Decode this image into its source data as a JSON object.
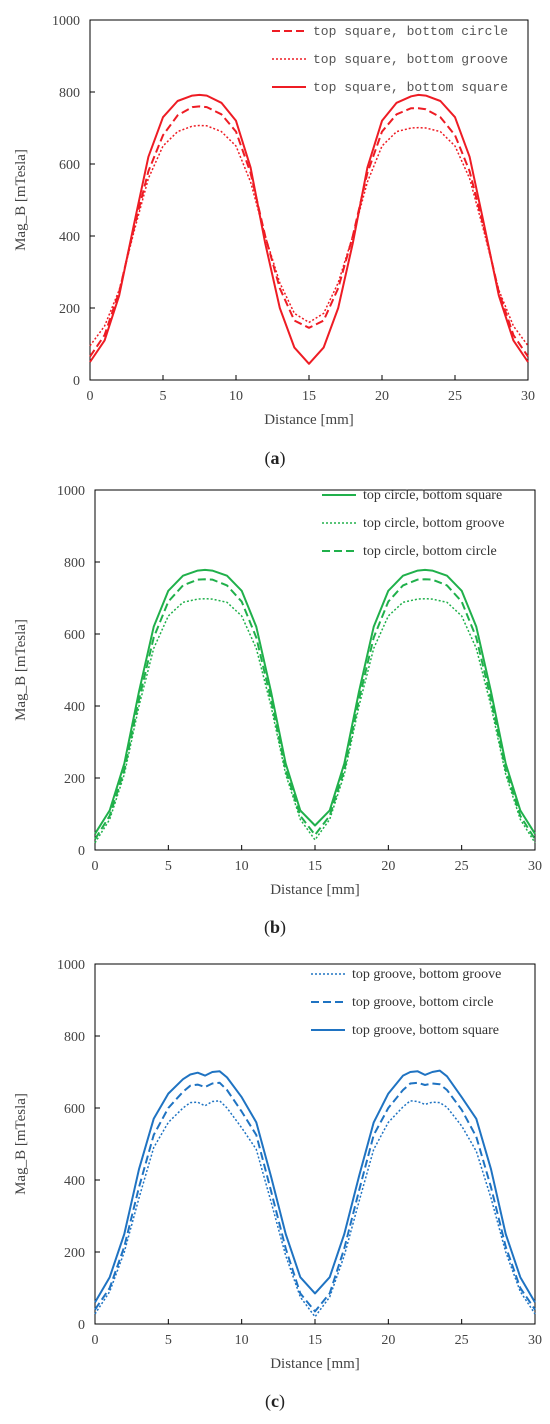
{
  "captions": [
    {
      "open": "(",
      "letter": "a",
      "close": ")"
    },
    {
      "open": "(",
      "letter": "b",
      "close": ")"
    },
    {
      "open": "(",
      "letter": "c",
      "close": ")"
    }
  ],
  "chart_data": [
    {
      "type": "line",
      "xlabel": "Distance [mm]",
      "ylabel": "Mag_B [mTesla]",
      "xlim": [
        0,
        30
      ],
      "ylim": [
        0,
        1000
      ],
      "xticks": [
        "0",
        "5",
        "10",
        "15",
        "20",
        "25",
        "30"
      ],
      "yticks": [
        "0",
        "200",
        "400",
        "600",
        "800",
        "1000"
      ],
      "grid": false,
      "legend_position": "top-right",
      "color": "#ee1c24",
      "x": [
        0,
        1,
        2,
        3,
        4,
        5,
        6,
        7,
        7.5,
        8,
        9,
        10,
        11,
        12,
        13,
        14,
        15,
        16,
        17,
        18,
        19,
        20,
        21,
        22,
        22.5,
        23,
        24,
        25,
        26,
        27,
        28,
        29,
        30
      ],
      "series": [
        {
          "name": "top square, bottom circle",
          "dash": "dashed",
          "values": [
            65,
            125,
            245,
            420,
            580,
            680,
            735,
            758,
            760,
            758,
            738,
            690,
            575,
            400,
            255,
            165,
            145,
            165,
            255,
            400,
            575,
            690,
            738,
            755,
            755,
            752,
            730,
            680,
            580,
            420,
            245,
            125,
            65
          ]
        },
        {
          "name": "top square, bottom groove",
          "dash": "dotted",
          "values": [
            95,
            150,
            250,
            410,
            560,
            650,
            690,
            705,
            707,
            706,
            690,
            650,
            550,
            400,
            270,
            185,
            160,
            185,
            270,
            400,
            550,
            650,
            690,
            700,
            701,
            700,
            690,
            650,
            560,
            410,
            250,
            150,
            95
          ]
        },
        {
          "name": "top square, bottom square",
          "dash": "solid",
          "values": [
            50,
            110,
            235,
            430,
            620,
            730,
            775,
            790,
            792,
            790,
            770,
            720,
            590,
            380,
            200,
            90,
            45,
            90,
            200,
            380,
            590,
            720,
            770,
            788,
            792,
            790,
            775,
            730,
            620,
            430,
            235,
            110,
            50
          ]
        }
      ]
    },
    {
      "type": "line",
      "xlabel": "Distance [mm]",
      "ylabel": "Mag_B [mTesla]",
      "xlim": [
        0,
        30
      ],
      "ylim": [
        0,
        1000
      ],
      "xticks": [
        "0",
        "5",
        "10",
        "15",
        "20",
        "25",
        "30"
      ],
      "yticks": [
        "0",
        "200",
        "400",
        "600",
        "800",
        "1000"
      ],
      "grid": false,
      "legend_position": "top-right",
      "color": "#20b04b",
      "x": [
        0,
        1,
        2,
        3,
        4,
        5,
        6,
        7,
        7.5,
        8,
        9,
        10,
        11,
        12,
        13,
        14,
        15,
        16,
        17,
        18,
        19,
        20,
        21,
        22,
        22.5,
        23,
        24,
        25,
        26,
        27,
        28,
        29,
        30
      ],
      "series": [
        {
          "name": "top circle, bottom square",
          "dash": "solid",
          "values": [
            45,
            110,
            240,
            440,
            620,
            720,
            762,
            776,
            778,
            776,
            762,
            720,
            620,
            440,
            240,
            110,
            68,
            110,
            240,
            440,
            620,
            720,
            762,
            776,
            778,
            776,
            762,
            720,
            620,
            440,
            240,
            110,
            45
          ]
        },
        {
          "name": "top circle, bottom groove",
          "dash": "dotted",
          "values": [
            20,
            85,
            210,
            400,
            560,
            650,
            688,
            697,
            698,
            697,
            688,
            650,
            560,
            400,
            210,
            85,
            28,
            85,
            210,
            400,
            560,
            650,
            688,
            697,
            698,
            697,
            688,
            650,
            560,
            400,
            210,
            85,
            20
          ]
        },
        {
          "name": "top circle, bottom circle",
          "dash": "dashed",
          "values": [
            30,
            95,
            222,
            418,
            590,
            690,
            735,
            751,
            752,
            751,
            735,
            690,
            590,
            418,
            222,
            95,
            42,
            95,
            222,
            418,
            590,
            690,
            735,
            751,
            752,
            751,
            735,
            690,
            590,
            418,
            222,
            95,
            30
          ]
        }
      ]
    },
    {
      "type": "line",
      "xlabel": "Distance [mm]",
      "ylabel": "Mag_B [mTesla]",
      "xlim": [
        0,
        30
      ],
      "ylim": [
        0,
        1000
      ],
      "xticks": [
        "0",
        "5",
        "10",
        "15",
        "20",
        "25",
        "30"
      ],
      "yticks": [
        "0",
        "200",
        "400",
        "600",
        "800",
        "1000"
      ],
      "grid": false,
      "legend_position": "top-right",
      "color": "#1f73c2",
      "x": [
        0,
        1,
        2,
        3,
        4,
        5,
        6,
        6.5,
        7,
        7.5,
        8,
        8.5,
        9,
        10,
        11,
        12,
        13,
        14,
        15,
        16,
        17,
        18,
        19,
        20,
        21,
        21.5,
        22,
        22.5,
        23,
        23.5,
        24,
        25,
        26,
        27,
        28,
        29,
        30
      ],
      "series": [
        {
          "name": "top groove, bottom groove",
          "dash": "dotted",
          "values": [
            28,
            90,
            200,
            350,
            490,
            560,
            600,
            615,
            616,
            606,
            618,
            620,
            600,
            545,
            485,
            340,
            190,
            75,
            20,
            75,
            190,
            340,
            485,
            560,
            603,
            620,
            618,
            610,
            616,
            615,
            602,
            550,
            480,
            350,
            200,
            90,
            28
          ]
        },
        {
          "name": "top groove, bottom circle",
          "dash": "dashed",
          "values": [
            40,
            100,
            215,
            380,
            525,
            600,
            645,
            662,
            665,
            658,
            668,
            670,
            650,
            590,
            525,
            370,
            210,
            85,
            35,
            85,
            210,
            370,
            525,
            600,
            650,
            668,
            670,
            664,
            668,
            666,
            650,
            595,
            520,
            380,
            215,
            100,
            40
          ]
        },
        {
          "name": "top groove, bottom square",
          "dash": "solid",
          "values": [
            60,
            130,
            250,
            430,
            570,
            640,
            680,
            693,
            698,
            690,
            700,
            702,
            685,
            630,
            560,
            410,
            250,
            130,
            85,
            130,
            250,
            410,
            560,
            640,
            690,
            700,
            702,
            692,
            700,
            704,
            688,
            630,
            570,
            430,
            250,
            130,
            60
          ]
        }
      ]
    }
  ]
}
